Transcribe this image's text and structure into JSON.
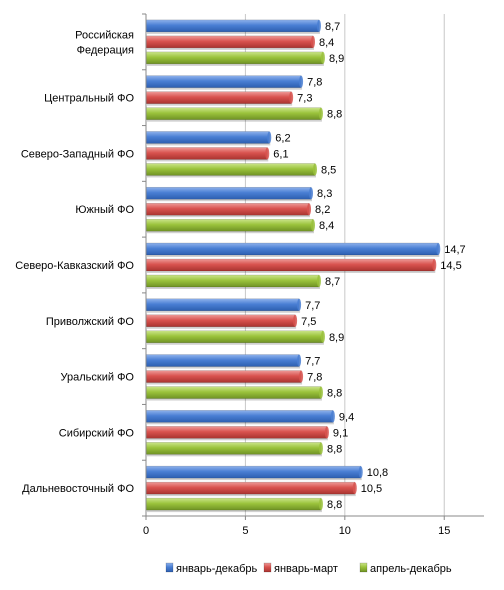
{
  "chart_data": {
    "type": "bar",
    "orientation": "horizontal",
    "categories": [
      [
        "Российская",
        "Федерация"
      ],
      [
        "Центральный ФО"
      ],
      [
        "Северо-Западный ФО"
      ],
      [
        "Южный ФО"
      ],
      [
        "Северо-Кавказский ФО"
      ],
      [
        "Приволжский ФО"
      ],
      [
        "Уральский ФО"
      ],
      [
        "Сибирский ФО"
      ],
      [
        "Дальневосточный ФО"
      ]
    ],
    "series": [
      {
        "name": "январь-декабрь",
        "color": "#4a7fd4",
        "values": [
          8.7,
          7.8,
          6.2,
          8.3,
          14.7,
          7.7,
          7.7,
          9.4,
          10.8
        ],
        "labels": [
          "8,7",
          "7,8",
          "6,2",
          "8,3",
          "14,7",
          "7,7",
          "7,7",
          "9,4",
          "10,8"
        ]
      },
      {
        "name": "январь-март",
        "color": "#d9534f",
        "values": [
          8.4,
          7.3,
          6.1,
          8.2,
          14.5,
          7.5,
          7.8,
          9.1,
          10.5
        ],
        "labels": [
          "8,4",
          "7,3",
          "6,1",
          "8,2",
          "14,5",
          "7,5",
          "7,8",
          "9,1",
          "10,5"
        ]
      },
      {
        "name": "апрель-декабрь",
        "color": "#9bc33c",
        "values": [
          8.9,
          8.8,
          8.5,
          8.4,
          8.7,
          8.9,
          8.8,
          8.8,
          8.8
        ],
        "labels": [
          "8,9",
          "8,8",
          "8,5",
          "8,4",
          "8,7",
          "8,9",
          "8,8",
          "8,8",
          "8,8"
        ]
      }
    ],
    "xlim": [
      0,
      17
    ],
    "x_ticks": [
      0,
      5,
      10,
      15
    ],
    "x_tick_labels": [
      "0",
      "5",
      "10",
      "15"
    ],
    "grid": "vertical",
    "legend_position": "bottom"
  }
}
